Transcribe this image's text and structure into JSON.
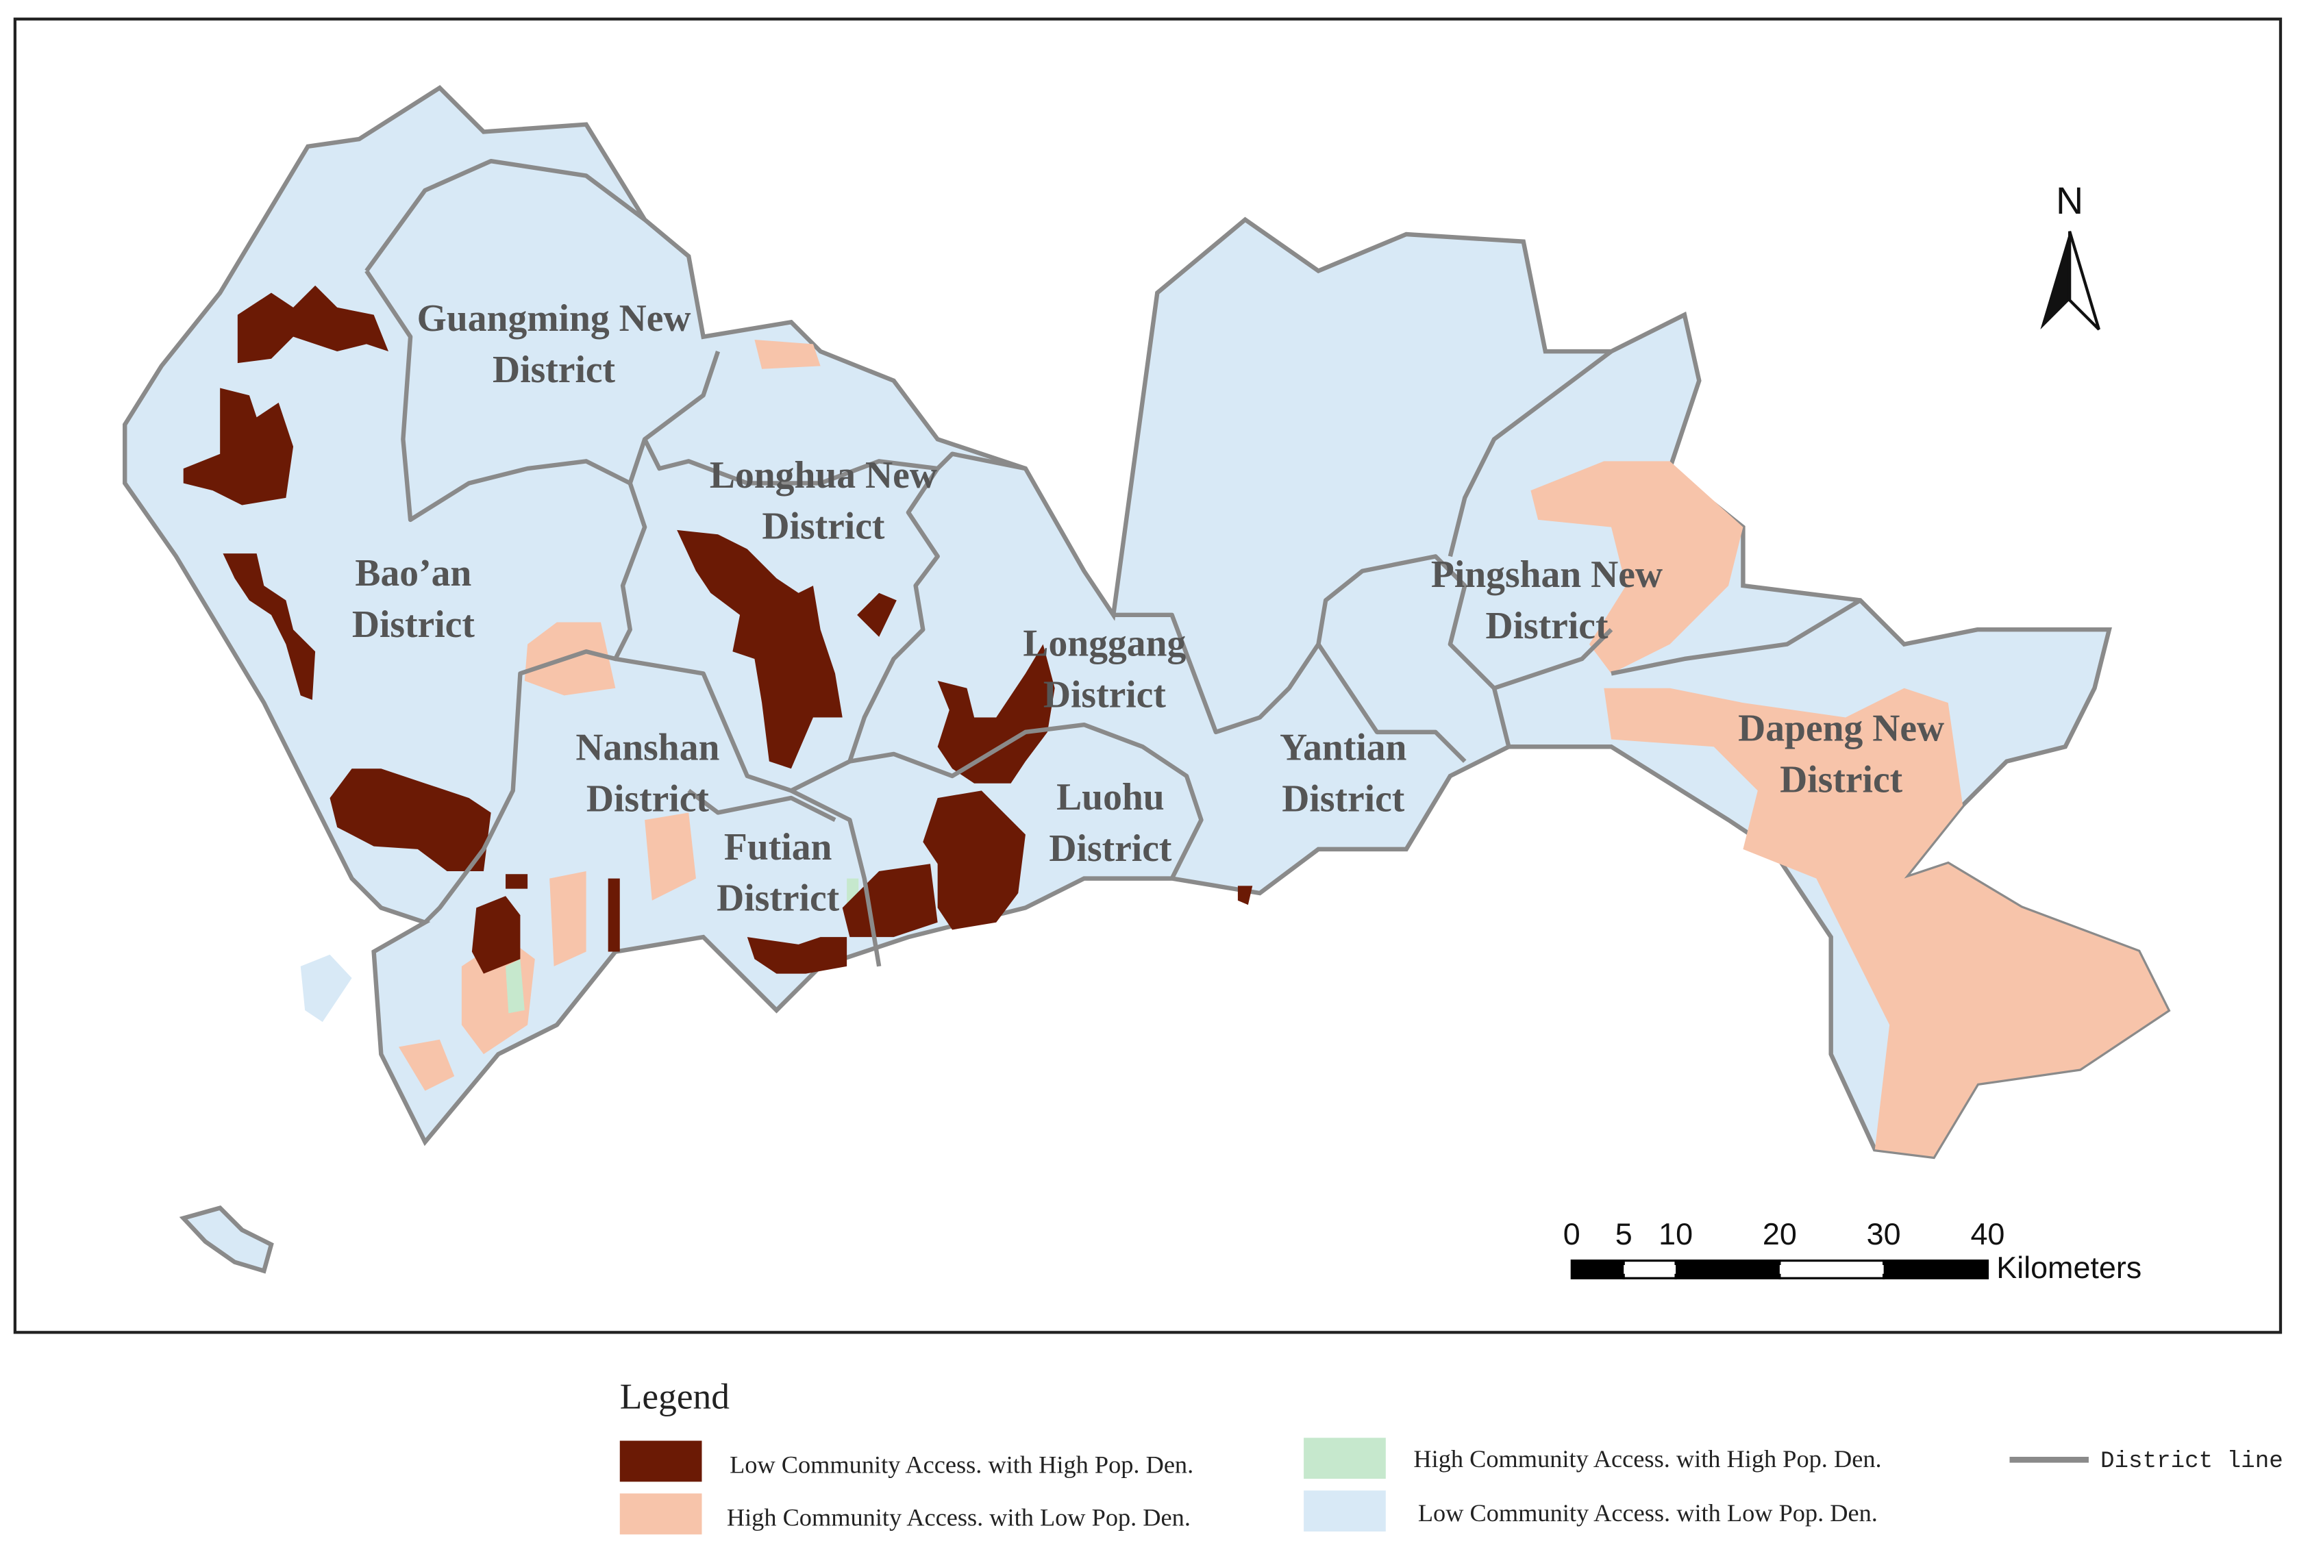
{
  "map": {
    "districts": [
      {
        "lines": [
          "Guangming New",
          "District"
        ]
      },
      {
        "lines": [
          "Longhua New",
          "District"
        ]
      },
      {
        "lines": [
          "Bao’an",
          "District"
        ]
      },
      {
        "lines": [
          "Longgang",
          "District"
        ]
      },
      {
        "lines": [
          "Pingshan New",
          "District"
        ]
      },
      {
        "lines": [
          "Nanshan",
          "District"
        ]
      },
      {
        "lines": [
          "Futian",
          "District"
        ]
      },
      {
        "lines": [
          "Luohu",
          "District"
        ]
      },
      {
        "lines": [
          "Yantian",
          "District"
        ]
      },
      {
        "lines": [
          "Dapeng New",
          "District"
        ]
      }
    ],
    "north_label": "N",
    "scale_bar": {
      "ticks": [
        0,
        5,
        10,
        20,
        30,
        40
      ],
      "unit": "Kilometers"
    }
  },
  "legend": {
    "title": "Legend",
    "items": [
      {
        "label": "Low Community Access. with High Pop. Den.",
        "color": "#6b1a05"
      },
      {
        "label": "High Community Access. with Low Pop. Den.",
        "color": "#f7c4aa"
      },
      {
        "label": "High Community Access. with High Pop. Den.",
        "color": "#c6e8cd"
      },
      {
        "label": "Low Community Access. with Low Pop. Den.",
        "color": "#d8e9f6"
      },
      {
        "label": "District line",
        "color": "#8a8a8a"
      }
    ]
  }
}
